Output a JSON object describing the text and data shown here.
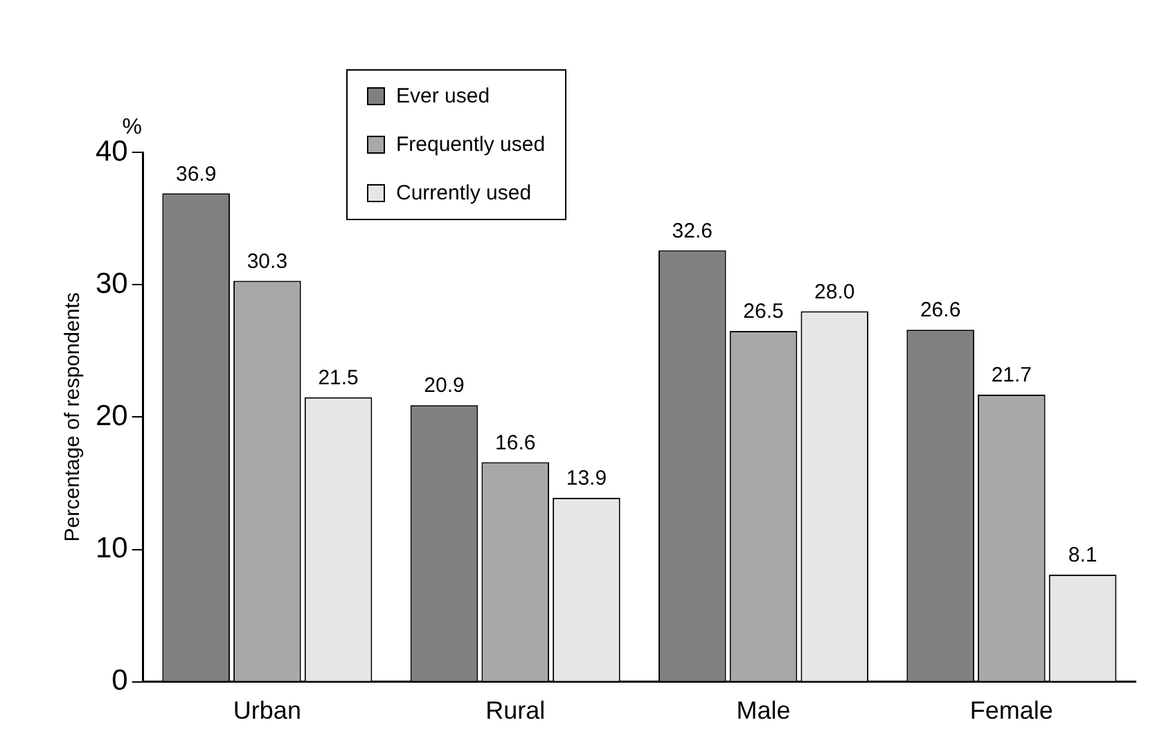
{
  "chart_data": {
    "type": "bar",
    "ylabel": "Percentage of respondents",
    "annotations": [
      "%"
    ],
    "categories": [
      "Urban",
      "Rural",
      "Male",
      "Female"
    ],
    "series": [
      {
        "name": "Ever used",
        "color": "#808080",
        "values": [
          36.9,
          20.9,
          32.6,
          26.6
        ],
        "value_labels": [
          "36.9",
          "20.9",
          "32.6",
          "26.6"
        ]
      },
      {
        "name": "Frequently used",
        "color": "#a8a8a8",
        "values": [
          30.3,
          16.6,
          26.5,
          21.7
        ],
        "value_labels": [
          "30.3",
          "16.6",
          "26.5",
          "21.7"
        ]
      },
      {
        "name": "Currently used",
        "color": "#e6e6e6",
        "values": [
          21.5,
          13.9,
          28.0,
          8.1
        ],
        "value_labels": [
          "21.5",
          "13.9",
          "28.0",
          "8.1"
        ]
      }
    ],
    "ylim": [
      0,
      40
    ],
    "yticks": [
      0,
      10,
      20,
      30,
      40
    ],
    "grid": false,
    "legend": "top"
  }
}
